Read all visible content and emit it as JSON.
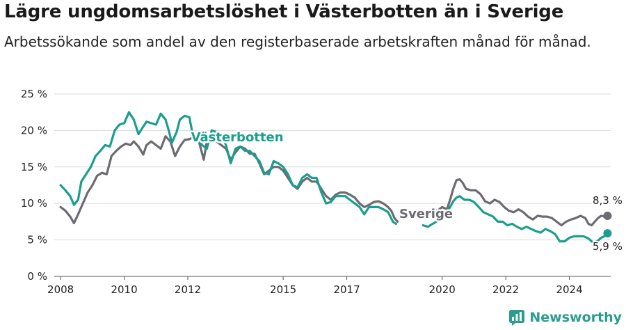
{
  "header": {
    "title": "Lägre ungdomsarbetslöshet i Västerbotten än i Sverige",
    "subtitle": "Arbetssökande som andel av den registerbaserade arbetskraften månad för månad."
  },
  "brand": {
    "name": "Newsworthy",
    "icon": "newsworthy-logo-icon"
  },
  "colors": {
    "vasterbotten": "#1a9e8f",
    "sverige": "#6b6b72",
    "grid": "#dcdcdc"
  },
  "chart_data": {
    "type": "line",
    "title": "Lägre ungdomsarbetslöshet i Västerbotten än i Sverige",
    "subtitle": "Arbetssökande som andel av den registerbaserade arbetskraften månad för månad.",
    "xlabel": "",
    "ylabel": "",
    "xlim": [
      2007.8,
      2025.3
    ],
    "ylim": [
      0,
      25
    ],
    "x_ticks": [
      2008,
      2010,
      2012,
      2015,
      2017,
      2020,
      2022,
      2024
    ],
    "x_tick_labels": [
      "2008",
      "2010",
      "2012",
      "2015",
      "2017",
      "2020",
      "2022",
      "2024"
    ],
    "y_ticks": [
      0,
      5,
      10,
      15,
      20,
      25
    ],
    "y_tick_labels": [
      "0 %",
      "5 %",
      "10 %",
      "15 %",
      "20 %",
      "25 %"
    ],
    "grid": true,
    "legend": "inline labels",
    "series": [
      {
        "name": "Sverige",
        "end_label": "8,3 %",
        "points": [
          [
            2008.0,
            9.5
          ],
          [
            2008.15,
            9.0
          ],
          [
            2008.3,
            8.2
          ],
          [
            2008.42,
            7.3
          ],
          [
            2008.55,
            8.5
          ],
          [
            2008.7,
            10.0
          ],
          [
            2008.85,
            11.5
          ],
          [
            2009.0,
            12.5
          ],
          [
            2009.15,
            13.8
          ],
          [
            2009.3,
            14.2
          ],
          [
            2009.45,
            14.0
          ],
          [
            2009.6,
            16.5
          ],
          [
            2009.75,
            17.2
          ],
          [
            2009.9,
            17.8
          ],
          [
            2010.05,
            18.2
          ],
          [
            2010.2,
            18.0
          ],
          [
            2010.3,
            18.5
          ],
          [
            2010.45,
            17.8
          ],
          [
            2010.6,
            16.7
          ],
          [
            2010.7,
            18.0
          ],
          [
            2010.85,
            18.5
          ],
          [
            2011.0,
            18.0
          ],
          [
            2011.15,
            17.5
          ],
          [
            2011.3,
            19.2
          ],
          [
            2011.45,
            18.5
          ],
          [
            2011.6,
            16.5
          ],
          [
            2011.75,
            17.8
          ],
          [
            2011.9,
            18.7
          ],
          [
            2012.05,
            18.8
          ],
          [
            2012.2,
            19.2
          ],
          [
            2012.35,
            18.5
          ],
          [
            2012.5,
            16.0
          ],
          [
            2012.6,
            18.5
          ],
          [
            2012.75,
            19.0
          ],
          [
            2012.9,
            18.5
          ],
          [
            2013.05,
            18.0
          ],
          [
            2013.2,
            17.5
          ],
          [
            2013.35,
            16.0
          ],
          [
            2013.5,
            17.0
          ],
          [
            2013.65,
            17.8
          ],
          [
            2013.8,
            17.5
          ],
          [
            2013.95,
            16.8
          ],
          [
            2014.1,
            16.8
          ],
          [
            2014.25,
            15.5
          ],
          [
            2014.4,
            14.0
          ],
          [
            2014.55,
            14.5
          ],
          [
            2014.7,
            15.0
          ],
          [
            2014.85,
            15.0
          ],
          [
            2015.0,
            14.5
          ],
          [
            2015.15,
            13.5
          ],
          [
            2015.3,
            12.5
          ],
          [
            2015.45,
            12.0
          ],
          [
            2015.6,
            13.0
          ],
          [
            2015.75,
            13.5
          ],
          [
            2015.9,
            13.0
          ],
          [
            2016.05,
            13.0
          ],
          [
            2016.2,
            12.0
          ],
          [
            2016.35,
            11.0
          ],
          [
            2016.5,
            10.5
          ],
          [
            2016.65,
            11.2
          ],
          [
            2016.8,
            11.5
          ],
          [
            2016.95,
            11.5
          ],
          [
            2017.1,
            11.2
          ],
          [
            2017.25,
            10.8
          ],
          [
            2017.4,
            10.0
          ],
          [
            2017.55,
            9.5
          ],
          [
            2017.7,
            9.8
          ],
          [
            2017.85,
            10.2
          ],
          [
            2018.0,
            10.3
          ],
          [
            2018.15,
            10.0
          ],
          [
            2018.3,
            9.5
          ],
          [
            2018.4,
            9.0
          ],
          [
            2018.5,
            8.0
          ],
          [
            2018.6,
            7.5
          ],
          [
            2019.5,
            8.8
          ],
          [
            2019.7,
            9.2
          ],
          [
            2019.85,
            9.0
          ],
          [
            2020.0,
            9.5
          ],
          [
            2020.15,
            9.2
          ],
          [
            2020.25,
            10.5
          ],
          [
            2020.35,
            12.0
          ],
          [
            2020.45,
            13.2
          ],
          [
            2020.55,
            13.3
          ],
          [
            2020.65,
            12.8
          ],
          [
            2020.75,
            12.0
          ],
          [
            2020.9,
            11.8
          ],
          [
            2021.05,
            11.8
          ],
          [
            2021.2,
            11.3
          ],
          [
            2021.35,
            10.3
          ],
          [
            2021.5,
            10.0
          ],
          [
            2021.65,
            10.5
          ],
          [
            2021.8,
            10.2
          ],
          [
            2021.95,
            9.5
          ],
          [
            2022.1,
            9.0
          ],
          [
            2022.25,
            8.8
          ],
          [
            2022.4,
            9.2
          ],
          [
            2022.55,
            8.8
          ],
          [
            2022.7,
            8.2
          ],
          [
            2022.85,
            7.8
          ],
          [
            2023.0,
            8.3
          ],
          [
            2023.15,
            8.2
          ],
          [
            2023.3,
            8.2
          ],
          [
            2023.45,
            8.0
          ],
          [
            2023.6,
            7.5
          ],
          [
            2023.75,
            7.0
          ],
          [
            2023.9,
            7.5
          ],
          [
            2024.05,
            7.8
          ],
          [
            2024.2,
            8.0
          ],
          [
            2024.35,
            8.3
          ],
          [
            2024.5,
            8.0
          ],
          [
            2024.6,
            7.2
          ],
          [
            2024.7,
            7.0
          ],
          [
            2024.8,
            7.5
          ],
          [
            2024.9,
            8.0
          ],
          [
            2025.0,
            8.3
          ],
          [
            2025.1,
            8.2
          ],
          [
            2025.2,
            8.3
          ]
        ]
      },
      {
        "name": "Västerbotten",
        "end_label": "5,9 %",
        "points": [
          [
            2008.0,
            12.5
          ],
          [
            2008.15,
            11.8
          ],
          [
            2008.3,
            11.0
          ],
          [
            2008.42,
            9.8
          ],
          [
            2008.55,
            10.5
          ],
          [
            2008.65,
            13.0
          ],
          [
            2008.8,
            14.0
          ],
          [
            2008.95,
            15.0
          ],
          [
            2009.1,
            16.5
          ],
          [
            2009.25,
            17.2
          ],
          [
            2009.4,
            18.0
          ],
          [
            2009.55,
            17.8
          ],
          [
            2009.7,
            20.0
          ],
          [
            2009.85,
            20.8
          ],
          [
            2010.0,
            21.0
          ],
          [
            2010.15,
            22.5
          ],
          [
            2010.3,
            21.5
          ],
          [
            2010.45,
            19.5
          ],
          [
            2010.55,
            20.2
          ],
          [
            2010.7,
            21.2
          ],
          [
            2010.85,
            21.0
          ],
          [
            2011.0,
            20.8
          ],
          [
            2011.15,
            22.3
          ],
          [
            2011.3,
            21.5
          ],
          [
            2011.4,
            20.0
          ],
          [
            2011.5,
            18.3
          ],
          [
            2011.65,
            19.8
          ],
          [
            2011.75,
            21.5
          ],
          [
            2011.9,
            22.0
          ],
          [
            2012.05,
            21.8
          ],
          [
            2012.15,
            19.5
          ],
          [
            2012.3,
            19.0
          ],
          [
            2012.45,
            18.0
          ],
          [
            2012.6,
            17.5
          ],
          [
            2012.75,
            20.0
          ],
          [
            2012.9,
            19.8
          ],
          [
            2013.05,
            19.5
          ],
          [
            2013.2,
            18.0
          ],
          [
            2013.35,
            15.5
          ],
          [
            2013.5,
            17.5
          ],
          [
            2013.65,
            17.8
          ],
          [
            2013.8,
            17.2
          ],
          [
            2013.95,
            17.2
          ],
          [
            2014.1,
            16.5
          ],
          [
            2014.25,
            15.8
          ],
          [
            2014.4,
            14.2
          ],
          [
            2014.55,
            14.0
          ],
          [
            2014.7,
            15.8
          ],
          [
            2014.85,
            15.5
          ],
          [
            2015.0,
            15.0
          ],
          [
            2015.15,
            14.0
          ],
          [
            2015.3,
            12.5
          ],
          [
            2015.45,
            12.2
          ],
          [
            2015.6,
            13.5
          ],
          [
            2015.75,
            14.0
          ],
          [
            2015.9,
            13.5
          ],
          [
            2016.05,
            13.5
          ],
          [
            2016.2,
            11.5
          ],
          [
            2016.35,
            10.0
          ],
          [
            2016.5,
            10.2
          ],
          [
            2016.65,
            11.0
          ],
          [
            2016.8,
            11.0
          ],
          [
            2016.95,
            11.0
          ],
          [
            2017.1,
            10.5
          ],
          [
            2017.25,
            10.0
          ],
          [
            2017.4,
            9.5
          ],
          [
            2017.55,
            8.5
          ],
          [
            2017.7,
            9.5
          ],
          [
            2017.85,
            9.5
          ],
          [
            2018.0,
            9.5
          ],
          [
            2018.15,
            9.2
          ],
          [
            2018.3,
            8.8
          ],
          [
            2018.45,
            7.5
          ],
          [
            2018.55,
            7.2
          ],
          [
            2019.4,
            7.0
          ],
          [
            2019.55,
            6.8
          ],
          [
            2020.0,
            8.0
          ],
          [
            2020.15,
            8.8
          ],
          [
            2020.25,
            9.5
          ],
          [
            2020.35,
            10.3
          ],
          [
            2020.45,
            10.8
          ],
          [
            2020.55,
            11.0
          ],
          [
            2020.7,
            10.5
          ],
          [
            2020.85,
            10.5
          ],
          [
            2021.0,
            10.2
          ],
          [
            2021.15,
            9.5
          ],
          [
            2021.3,
            8.8
          ],
          [
            2021.45,
            8.5
          ],
          [
            2021.6,
            8.2
          ],
          [
            2021.75,
            7.5
          ],
          [
            2021.9,
            7.5
          ],
          [
            2022.05,
            7.0
          ],
          [
            2022.2,
            7.2
          ],
          [
            2022.35,
            6.8
          ],
          [
            2022.5,
            6.5
          ],
          [
            2022.65,
            6.8
          ],
          [
            2022.8,
            6.5
          ],
          [
            2022.95,
            6.2
          ],
          [
            2023.1,
            6.0
          ],
          [
            2023.25,
            6.5
          ],
          [
            2023.4,
            6.2
          ],
          [
            2023.55,
            5.8
          ],
          [
            2023.7,
            4.8
          ],
          [
            2023.85,
            4.8
          ],
          [
            2024.0,
            5.3
          ],
          [
            2024.15,
            5.5
          ],
          [
            2024.3,
            5.5
          ],
          [
            2024.45,
            5.5
          ],
          [
            2024.6,
            5.2
          ],
          [
            2024.7,
            4.8
          ],
          [
            2024.8,
            4.5
          ],
          [
            2025.0,
            5.3
          ],
          [
            2025.1,
            5.5
          ],
          [
            2025.2,
            5.9
          ]
        ]
      }
    ],
    "annotations": [
      {
        "series": "Västerbotten",
        "text": "Västerbotten",
        "at": [
          2012.1,
          18.5
        ]
      },
      {
        "series": "Sverige",
        "text": "Sverige",
        "at": [
          2018.65,
          8.0
        ]
      }
    ]
  }
}
